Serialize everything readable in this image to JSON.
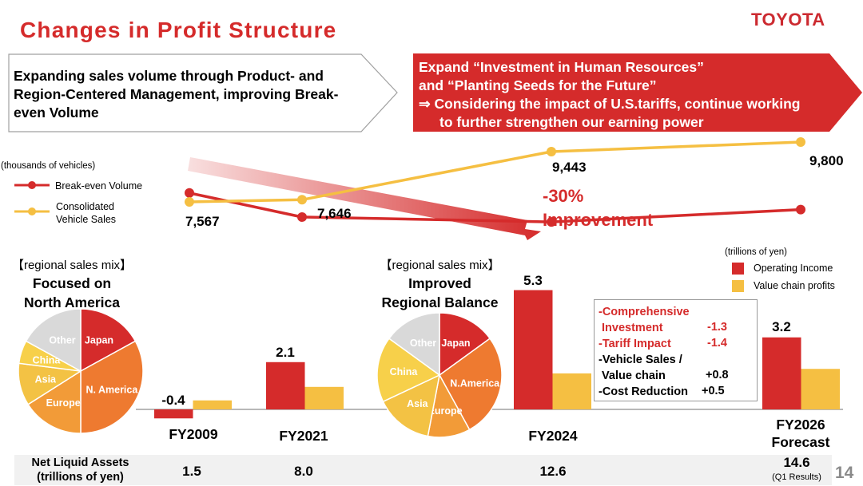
{
  "header": {
    "title": "Changes in Profit Structure",
    "logo": "TOYOTA"
  },
  "chevrons": {
    "left": {
      "text": "Expanding sales volume through Product- and Region-Centered Management, improving Break-even Volume",
      "lines": [
        "Expanding sales volume through Product- and",
        "Region-Centered Management, improving Break-",
        "even Volume"
      ]
    },
    "right": {
      "lines": [
        "Expand “Investment in Human Resources”",
        "and “Planting Seeds for the Future”",
        "⇒ Considering the impact of U.S.tariffs, continue working",
        "to further strengthen our earning power"
      ]
    }
  },
  "colors": {
    "brand_red": "#d52b2b",
    "yellow": "#f5bf42",
    "orange": "#ee7a30",
    "light_orange": "#f29b38",
    "gold": "#f3c244",
    "china_yellow": "#f7d04a",
    "gray": "#d9d9d9"
  },
  "line_chart": {
    "unit": "(thousands of vehicles)",
    "legend": [
      {
        "name": "Break-even Volume",
        "color": "#d52b2b"
      },
      {
        "name": "Consolidated Vehicle Sales",
        "lines": [
          "Consolidated",
          "Vehicle Sales"
        ],
        "color": "#f5bf42"
      }
    ],
    "callout": [
      "-30%",
      "Improvement"
    ]
  },
  "bar_chart": {
    "unit": "(trillions of yen)",
    "legend": [
      {
        "name": "Operating Income",
        "color": "#d52b2b"
      },
      {
        "name": "Value chain profits",
        "color": "#f5bf42"
      }
    ]
  },
  "pies": [
    {
      "caption": "【regional sales mix】",
      "headline": [
        "Focused on",
        "North America"
      ]
    },
    {
      "caption": "【regional sales mix】",
      "headline": [
        "Improved",
        "Regional Balance"
      ]
    }
  ],
  "factor_box": {
    "rows": [
      {
        "label": "-Comprehensive",
        "value": "",
        "color": "red"
      },
      {
        "label": " Investment",
        "value": "-1.3",
        "color": "red"
      },
      {
        "label": "-Tariff Impact",
        "value": "-1.4",
        "color": "red"
      },
      {
        "label": "-Vehicle Sales /",
        "value": "",
        "color": "black"
      },
      {
        "label": " Value chain",
        "value": "+0.8",
        "color": "black"
      },
      {
        "label": "-Cost Reduction",
        "value": "+0.5",
        "color": "black"
      }
    ]
  },
  "footer": {
    "label_lines": [
      "Net Liquid Assets",
      "(trillions of yen)"
    ],
    "values": [
      "1.5",
      "8.0",
      "12.6",
      "14.6"
    ],
    "note": "(Q1 Results)",
    "page_number": "14"
  },
  "chart_data": [
    {
      "type": "line",
      "title": "Break-even Volume vs Consolidated Vehicle Sales",
      "ylabel": "thousands of vehicles",
      "x": [
        "FY2009",
        "FY2021",
        "FY2024",
        "FY2026 Forecast"
      ],
      "series": [
        {
          "name": "Consolidated Vehicle Sales",
          "values": [
            7567,
            7646,
            9443,
            9800
          ],
          "labels": [
            "7,567",
            "7,646",
            "9,443",
            "9,800"
          ]
        },
        {
          "name": "Break-even Volume",
          "values": [
            7900,
            7000,
            6820,
            7280
          ],
          "labels": [
            "",
            "",
            "",
            ""
          ]
        }
      ],
      "annotation": "-30% Improvement",
      "ylim": [
        6000,
        10500
      ],
      "grid": false,
      "legend": "left"
    },
    {
      "type": "bar",
      "title": "Operating Income and Value chain profits",
      "ylabel": "trillions of yen",
      "categories": [
        "FY2009",
        "FY2021",
        "FY2024",
        "FY2026 Forecast"
      ],
      "category_lines": [
        [
          "FY2009"
        ],
        [
          "FY2021"
        ],
        [
          "FY2024"
        ],
        [
          "FY2026",
          "Forecast"
        ]
      ],
      "series": [
        {
          "name": "Operating Income",
          "values": [
            -0.4,
            2.1,
            5.3,
            3.2
          ],
          "labels": [
            "-0.4",
            "2.1",
            "5.3",
            "3.2"
          ]
        },
        {
          "name": "Value chain profits",
          "values": [
            0.4,
            1.0,
            1.6,
            1.8
          ],
          "labels": [
            "",
            "",
            "",
            ""
          ]
        }
      ],
      "ylim": [
        -0.5,
        5.5
      ],
      "grid": false,
      "legend": "top-right"
    },
    {
      "type": "pie",
      "title": "Regional sales mix (FY2009) - Focused on North America",
      "labels": [
        "Japan",
        "N. America",
        "Europe",
        "Asia",
        "China",
        "Other"
      ],
      "values": [
        17,
        33,
        16,
        11,
        6,
        17
      ]
    },
    {
      "type": "pie",
      "title": "Regional sales mix (FY2024) - Improved Regional Balance",
      "labels": [
        "Japan",
        "N.America",
        "Europe",
        "Asia",
        "China",
        "Other"
      ],
      "values": [
        15,
        27,
        11,
        15,
        17,
        15
      ]
    }
  ]
}
